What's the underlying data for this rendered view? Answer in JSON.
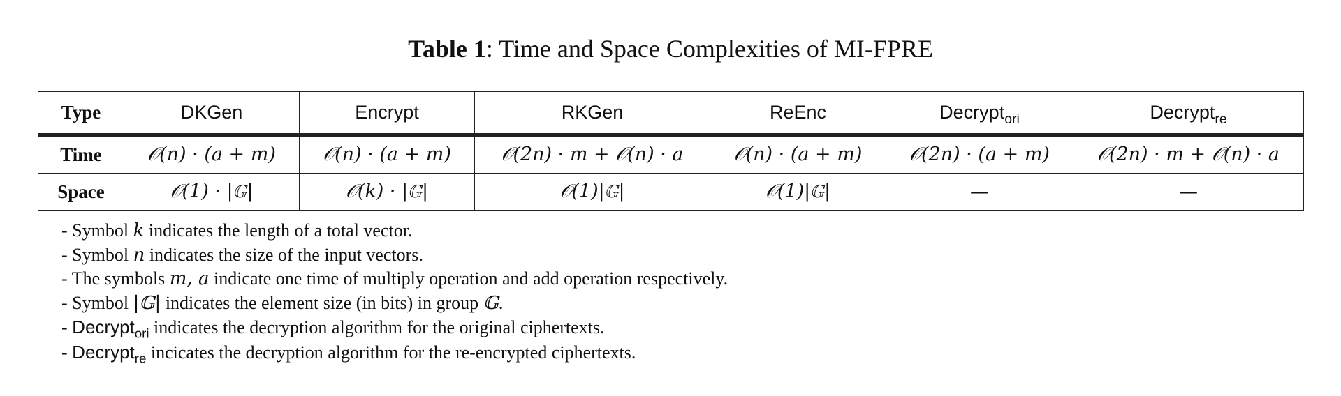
{
  "caption": {
    "label": "Table 1",
    "text": ": Time and Space Complexities of MI-FPRE"
  },
  "table": {
    "header": {
      "type": "Type",
      "dkgen": "DKGen",
      "encrypt": "Encrypt",
      "rkgen": "RKGen",
      "reenc": "ReEnc",
      "decrypt_ori_base": "Decrypt",
      "decrypt_ori_sub": "ori",
      "decrypt_re_base": "Decrypt",
      "decrypt_re_sub": "re"
    },
    "time": {
      "label": "Time",
      "dkgen": "𝒪(n) · (a + m)",
      "encrypt": "𝒪(n) · (a + m)",
      "rkgen": "𝒪(2n) · m + 𝒪(n) · a",
      "reenc": "𝒪(n) · (a + m)",
      "decrypt_ori": "𝒪(2n) · (a + m)",
      "decrypt_re": "𝒪(2n) · m + 𝒪(n) · a"
    },
    "space": {
      "label": "Space",
      "dkgen": "𝒪(1) · |𝔾|",
      "encrypt": "𝒪(k) · |𝔾|",
      "rkgen": "𝒪(1)|𝔾|",
      "reenc": "𝒪(1)|𝔾|",
      "decrypt_ori": "—",
      "decrypt_re": "—"
    }
  },
  "notes": {
    "n1_pre": "- Symbol ",
    "n1_sym": "k",
    "n1_post": " indicates the length of a total vector.",
    "n2_pre": "- Symbol ",
    "n2_sym": "n",
    "n2_post": " indicates the size of the input vectors.",
    "n3_pre": "- The symbols ",
    "n3_sym": "m, a",
    "n3_post": " indicate one time of multiply operation and add operation respectively.",
    "n4_pre": "- Symbol ",
    "n4_sym": "|𝔾|",
    "n4_mid": " indicates the element size (in bits) in group ",
    "n4_sym2": "𝔾",
    "n4_post": ".",
    "n5_pre": "- ",
    "n5_base": "Decrypt",
    "n5_sub": "ori",
    "n5_post": " indicates the decryption algorithm for the original ciphertexts.",
    "n6_pre": "- ",
    "n6_base": "Decrypt",
    "n6_sub": "re",
    "n6_post": " incicates the decryption algorithm for the re-encrypted ciphertexts."
  }
}
